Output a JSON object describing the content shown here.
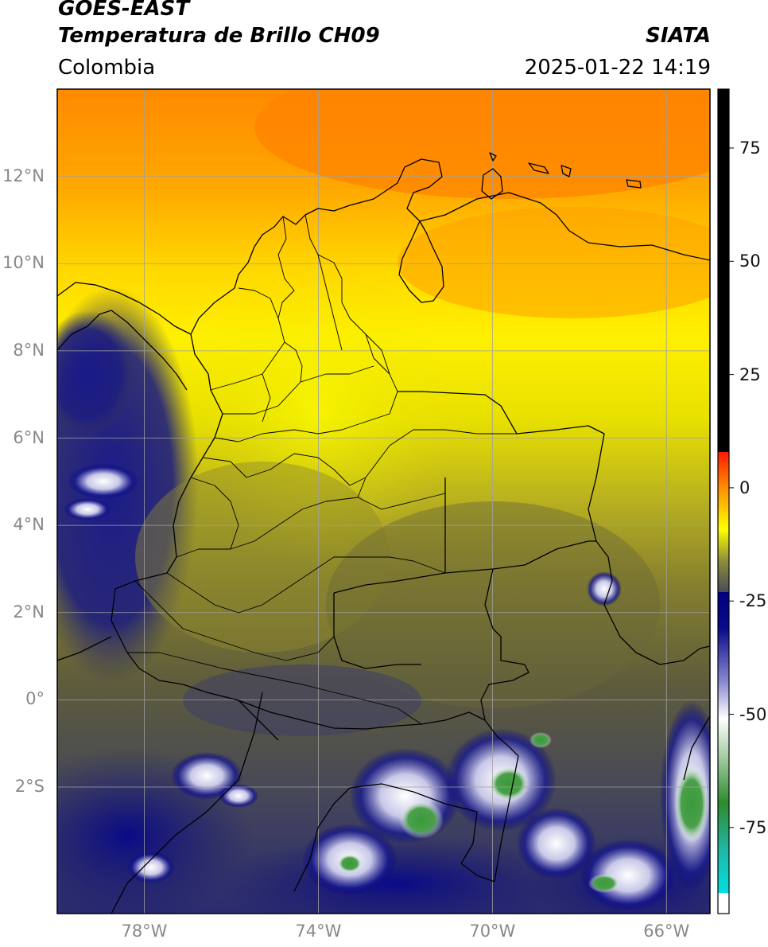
{
  "header": {
    "satellite": "GOES-EAST",
    "product": "Temperatura de Brillo CH09",
    "agency": "SIATA",
    "region": "Colombia",
    "datetime": "2025-01-22 14:19"
  },
  "axes": {
    "lat_ticks": [
      {
        "label": "12°N",
        "value": 12
      },
      {
        "label": "10°N",
        "value": 10
      },
      {
        "label": "8°N",
        "value": 8
      },
      {
        "label": "6°N",
        "value": 6
      },
      {
        "label": "4°N",
        "value": 4
      },
      {
        "label": "2°N",
        "value": 2
      },
      {
        "label": "0°",
        "value": 0
      },
      {
        "label": "2°S",
        "value": -2
      }
    ],
    "lon_ticks": [
      {
        "label": "78°W",
        "value": -78
      },
      {
        "label": "74°W",
        "value": -74
      },
      {
        "label": "70°W",
        "value": -70
      },
      {
        "label": "66°W",
        "value": -66
      }
    ],
    "lon_range": [
      -80,
      -65
    ],
    "lat_range": [
      -4.9,
      14.0
    ]
  },
  "colorbar": {
    "ticks": [
      {
        "label": "75",
        "value": 75
      },
      {
        "label": "50",
        "value": 50
      },
      {
        "label": "25",
        "value": 25
      },
      {
        "label": "0",
        "value": 0
      },
      {
        "label": "-25",
        "value": -25
      },
      {
        "label": "-50",
        "value": -50
      },
      {
        "label": "-75",
        "value": -75
      }
    ],
    "range": [
      -94,
      88
    ],
    "colors": {
      "black": "#000000",
      "red": "#ff1a00",
      "orange": "#ff8c00",
      "yellow": "#ffff00",
      "olive": "#6e6e3a",
      "gray": "#4a4a5a",
      "navy": "#000080",
      "white": "#ffffff",
      "green": "#2e8b2e",
      "cyan": "#00d0d0"
    }
  }
}
